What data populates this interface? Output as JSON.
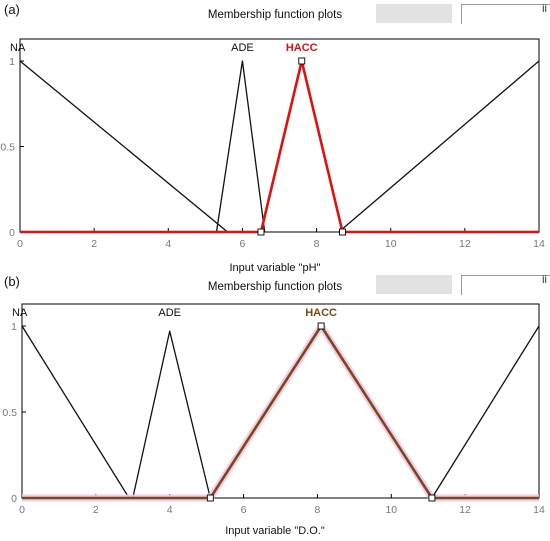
{
  "panels": [
    {
      "label": "(a)",
      "title": "Membership function plots",
      "corner_text": "İİ",
      "xlabel": "Input variable \"pH\""
    },
    {
      "label": "(b)",
      "title": "Membership function plots",
      "corner_text": "İİ",
      "xlabel": "Input variable \"D.O.\""
    }
  ],
  "colors": {
    "axis": "#000000",
    "black_curve": "#111111",
    "red": "#e01010",
    "brown": "#7a4a14",
    "pink": "#f2c6ec",
    "tick": "#777777"
  },
  "chart_data": [
    {
      "type": "line",
      "title": "Membership function plots",
      "xlabel": "Input variable \"pH\"",
      "ylabel": "",
      "xlim": [
        0,
        14
      ],
      "ylim": [
        0,
        1
      ],
      "x_ticks": [
        0,
        2,
        4,
        6,
        8,
        10,
        12,
        14
      ],
      "y_ticks": [
        0,
        0.5,
        1
      ],
      "y_tick_labels": [
        "0",
        "0.5",
        "1"
      ],
      "grid": false,
      "series": [
        {
          "name": "NA",
          "label_x": 0,
          "color": "#111111",
          "points": [
            [
              0,
              1
            ],
            [
              5.6,
              0
            ]
          ],
          "points2": [
            [
              8.6,
              0
            ],
            [
              14,
              1
            ]
          ],
          "bold": false
        },
        {
          "name": "ADE",
          "label_x": 6,
          "color": "#111111",
          "points": [
            [
              5.3,
              0
            ],
            [
              6,
              1
            ],
            [
              6.6,
              0
            ]
          ],
          "bold": false
        },
        {
          "name": "HACC",
          "label_x": 7.6,
          "color": "#e01010",
          "points": [
            [
              0,
              0
            ],
            [
              6.5,
              0
            ],
            [
              7.6,
              1
            ],
            [
              8.7,
              0
            ],
            [
              14,
              0
            ]
          ],
          "bold": true,
          "markers": [
            [
              6.5,
              0
            ],
            [
              7.6,
              1
            ],
            [
              8.7,
              0
            ]
          ]
        }
      ]
    },
    {
      "type": "line",
      "title": "Membership function plots",
      "xlabel": "Input variable \"D.O.\"",
      "ylabel": "",
      "xlim": [
        0,
        14
      ],
      "ylim": [
        0,
        1
      ],
      "x_ticks": [
        0,
        2,
        4,
        6,
        8,
        10,
        12,
        14
      ],
      "y_ticks": [
        0,
        0.5,
        1
      ],
      "y_tick_labels": [
        "0",
        "0.5",
        "1"
      ],
      "grid": false,
      "series": [
        {
          "name": "NA",
          "label_x": 0,
          "color": "#111111",
          "points": [
            [
              0,
              1
            ],
            [
              2.9,
              0
            ]
          ],
          "points2": [
            [
              11.1,
              0
            ],
            [
              14,
              1
            ]
          ],
          "bold": false
        },
        {
          "name": "ADE",
          "label_x": 4,
          "color": "#111111",
          "points": [
            [
              3.0,
              0
            ],
            [
              4,
              0.97
            ],
            [
              5.1,
              0
            ]
          ],
          "bold": false
        },
        {
          "name": "HACC",
          "label_x": 8.1,
          "color": "#7a4a14",
          "points": [
            [
              0,
              0
            ],
            [
              5.1,
              0
            ],
            [
              8.1,
              1
            ],
            [
              11.1,
              0
            ],
            [
              14,
              0
            ]
          ],
          "bold": true,
          "markers": [
            [
              5.1,
              0
            ],
            [
              8.1,
              1
            ],
            [
              11.1,
              0
            ]
          ]
        }
      ]
    }
  ]
}
